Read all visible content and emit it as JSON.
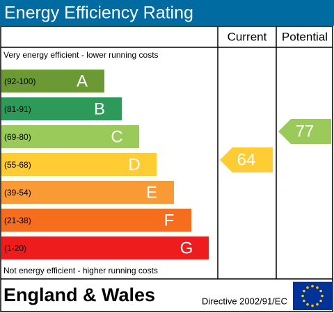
{
  "header": {
    "title": "Energy Efficiency Rating"
  },
  "columns": {
    "current": "Current",
    "potential": "Potential"
  },
  "top_note": "Very energy efficient - lower running costs",
  "bottom_note": "Not energy efficient - higher running costs",
  "bands": [
    {
      "range": "(92-100)",
      "letter": "A"
    },
    {
      "range": "(81-91)",
      "letter": "B"
    },
    {
      "range": "(69-80)",
      "letter": "C"
    },
    {
      "range": "(55-68)",
      "letter": "D"
    },
    {
      "range": "(39-54)",
      "letter": "E"
    },
    {
      "range": "(21-38)",
      "letter": "F"
    },
    {
      "range": "(1-20)",
      "letter": "G"
    }
  ],
  "current": {
    "value": "64"
  },
  "potential": {
    "value": "77"
  },
  "footer": {
    "region": "England & Wales",
    "directive": "Directive 2002/91/EC"
  }
}
